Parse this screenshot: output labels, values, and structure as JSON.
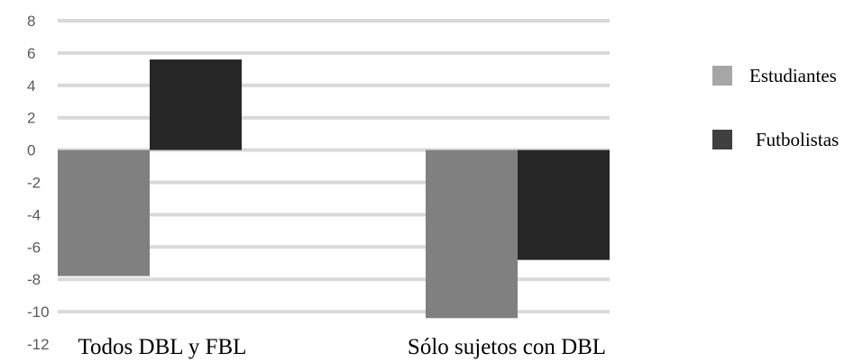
{
  "chart_data": {
    "type": "bar",
    "title": "",
    "xlabel": "",
    "ylabel": "",
    "categories": [
      "Todos DBL y FBL",
      "Sólo sujetos con DBL"
    ],
    "series": [
      {
        "name": "Estudiantes",
        "values": [
          -7.8,
          -10.4
        ],
        "color": "#808080",
        "legend_color": "#a6a6a6"
      },
      {
        "name": "Futbolistas",
        "values": [
          5.6,
          -6.8
        ],
        "color": "#262626",
        "legend_color": "#404040"
      }
    ],
    "ylim": [
      -12,
      8
    ],
    "yticks": [
      8,
      6,
      4,
      2,
      0,
      -2,
      -4,
      -6,
      -8,
      -10,
      -12
    ],
    "ytick_labels": [
      "8",
      "6",
      "4",
      "2",
      "0",
      "-2",
      "-4",
      "-6",
      "-8",
      "-10",
      "-12"
    ],
    "grid": true,
    "legend": "right"
  }
}
